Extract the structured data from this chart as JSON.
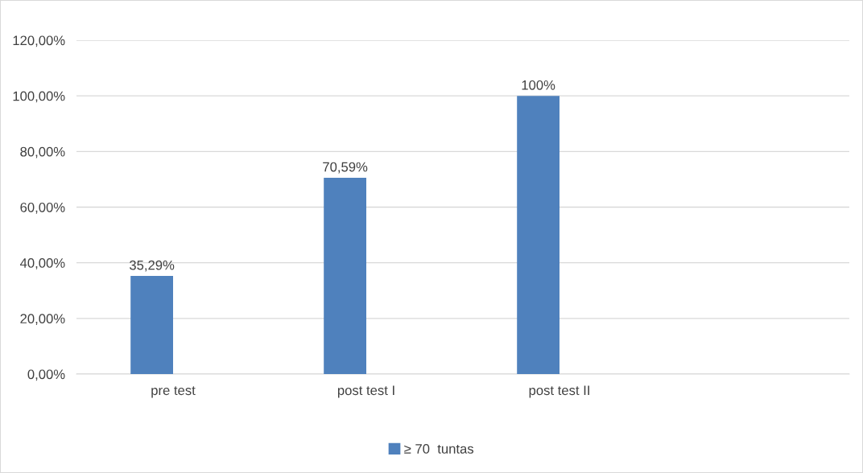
{
  "chart_data": {
    "type": "bar",
    "categories": [
      "pre test",
      "post test I",
      "post test II",
      null
    ],
    "series": [
      {
        "name": "≥ 70  tuntas",
        "color": "#4f81bd",
        "values": [
          35.29,
          70.59,
          100,
          null
        ],
        "value_labels": [
          "35,29%",
          "70,59%",
          "100%",
          null
        ]
      }
    ],
    "ylim": [
      0,
      120
    ],
    "yticks": [
      {
        "value": 0,
        "label": "0,00%"
      },
      {
        "value": 20,
        "label": "20,00%"
      },
      {
        "value": 40,
        "label": "40,00%"
      },
      {
        "value": 60,
        "label": "60,00%"
      },
      {
        "value": 80,
        "label": "80,00%"
      },
      {
        "value": 100,
        "label": "100,00%"
      },
      {
        "value": 120,
        "label": "120,00%"
      }
    ],
    "grid": "y",
    "legend": "bottom"
  }
}
